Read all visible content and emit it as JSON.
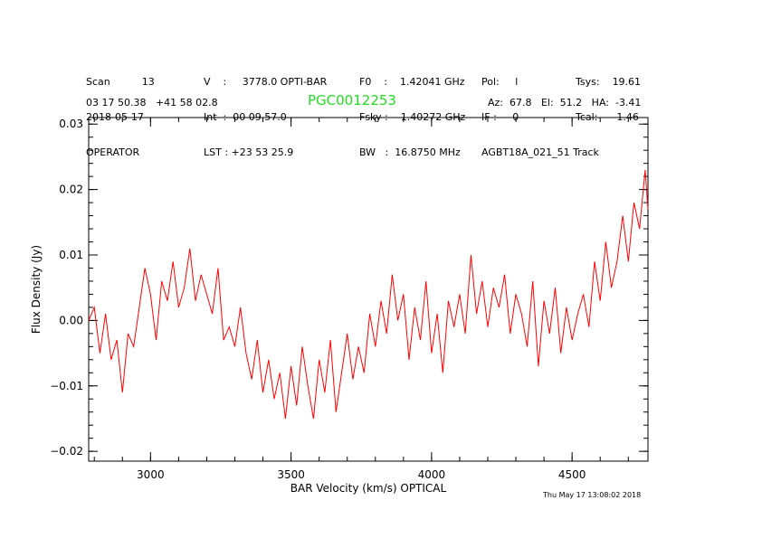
{
  "header": {
    "col1": [
      "Scan          13",
      "2018-05-17",
      "OPERATOR"
    ],
    "col2": [
      "V    :     3778.0 OPTI-BAR",
      "Int  :  00 09 57.0",
      "LST : +23 53 25.9"
    ],
    "col3": [
      "F0    :    1.42041 GHz",
      "Fsky :    1.40272 GHz",
      "BW   :  16.8750 MHz"
    ],
    "col4": [
      "Pol:     l",
      "IF :     0",
      "AGBT18A_021_51 Track"
    ],
    "col5": [
      "Tsys:    19.61",
      "Tcal:      1.46",
      ""
    ],
    "coords": "03 17 50.38   +41 58 02.8",
    "object": "PGC0012253",
    "pointing": "Az:  67.8   El:  51.2   HA:  -3.41",
    "timestamp": "Thu May 17 13:08:02 2018"
  },
  "chart_data": {
    "type": "line",
    "xlabel": "BAR Velocity (km/s) OPTICAL",
    "ylabel": "Flux Density (Jy)",
    "xlim": [
      2780,
      4770
    ],
    "ylim": [
      -0.0215,
      0.031
    ],
    "xticks": [
      3000,
      3500,
      4000,
      4500
    ],
    "xtick_labels": [
      "3000",
      "3500",
      "4000",
      "4500"
    ],
    "yticks": [
      -0.02,
      -0.01,
      0.0,
      0.01,
      0.02,
      0.03
    ],
    "ytick_labels": [
      "−0.02",
      "−0.01",
      "0.00",
      "0.01",
      "0.02",
      "0.03"
    ],
    "line_color": "#ff0000",
    "series": [
      {
        "x": [
          2780,
          2800,
          2820,
          2840,
          2860,
          2880,
          2900,
          2920,
          2940,
          2960,
          2980,
          3000,
          3020,
          3040,
          3060,
          3080,
          3100,
          3120,
          3140,
          3160,
          3180,
          3200,
          3220,
          3240,
          3260,
          3280,
          3300,
          3320,
          3340,
          3360,
          3380,
          3400,
          3420,
          3440,
          3460,
          3480,
          3500,
          3520,
          3540,
          3560,
          3580,
          3600,
          3620,
          3640,
          3660,
          3680,
          3700,
          3720,
          3740,
          3760,
          3780,
          3800,
          3820,
          3840,
          3860,
          3880,
          3900,
          3920,
          3940,
          3960,
          3980,
          4000,
          4020,
          4040,
          4060,
          4080,
          4100,
          4120,
          4140,
          4160,
          4180,
          4200,
          4220,
          4240,
          4260,
          4280,
          4300,
          4320,
          4340,
          4360,
          4380,
          4400,
          4420,
          4440,
          4460,
          4480,
          4500,
          4520,
          4540,
          4560,
          4580,
          4600,
          4620,
          4640,
          4660,
          4680,
          4700,
          4720,
          4740,
          4760,
          4770
        ],
        "y": [
          0.0,
          0.002,
          -0.005,
          0.001,
          -0.006,
          -0.003,
          -0.011,
          -0.002,
          -0.004,
          0.002,
          0.008,
          0.004,
          -0.003,
          0.006,
          0.003,
          0.009,
          0.002,
          0.005,
          0.011,
          0.003,
          0.007,
          0.004,
          0.001,
          0.008,
          -0.003,
          -0.001,
          -0.004,
          0.002,
          -0.005,
          -0.009,
          -0.003,
          -0.011,
          -0.006,
          -0.012,
          -0.008,
          -0.015,
          -0.007,
          -0.013,
          -0.004,
          -0.01,
          -0.015,
          -0.006,
          -0.011,
          -0.003,
          -0.014,
          -0.008,
          -0.002,
          -0.009,
          -0.004,
          -0.008,
          0.001,
          -0.004,
          0.003,
          -0.002,
          0.007,
          0.0,
          0.004,
          -0.006,
          0.002,
          -0.003,
          0.006,
          -0.005,
          0.001,
          -0.008,
          0.003,
          -0.001,
          0.004,
          -0.002,
          0.01,
          0.001,
          0.006,
          -0.001,
          0.005,
          0.002,
          0.007,
          -0.002,
          0.004,
          0.001,
          -0.004,
          0.006,
          -0.007,
          0.003,
          -0.002,
          0.005,
          -0.005,
          0.002,
          -0.003,
          0.001,
          0.004,
          -0.001,
          0.009,
          0.003,
          0.012,
          0.005,
          0.009,
          0.016,
          0.009,
          0.018,
          0.014,
          0.023,
          0.017
        ]
      }
    ]
  }
}
